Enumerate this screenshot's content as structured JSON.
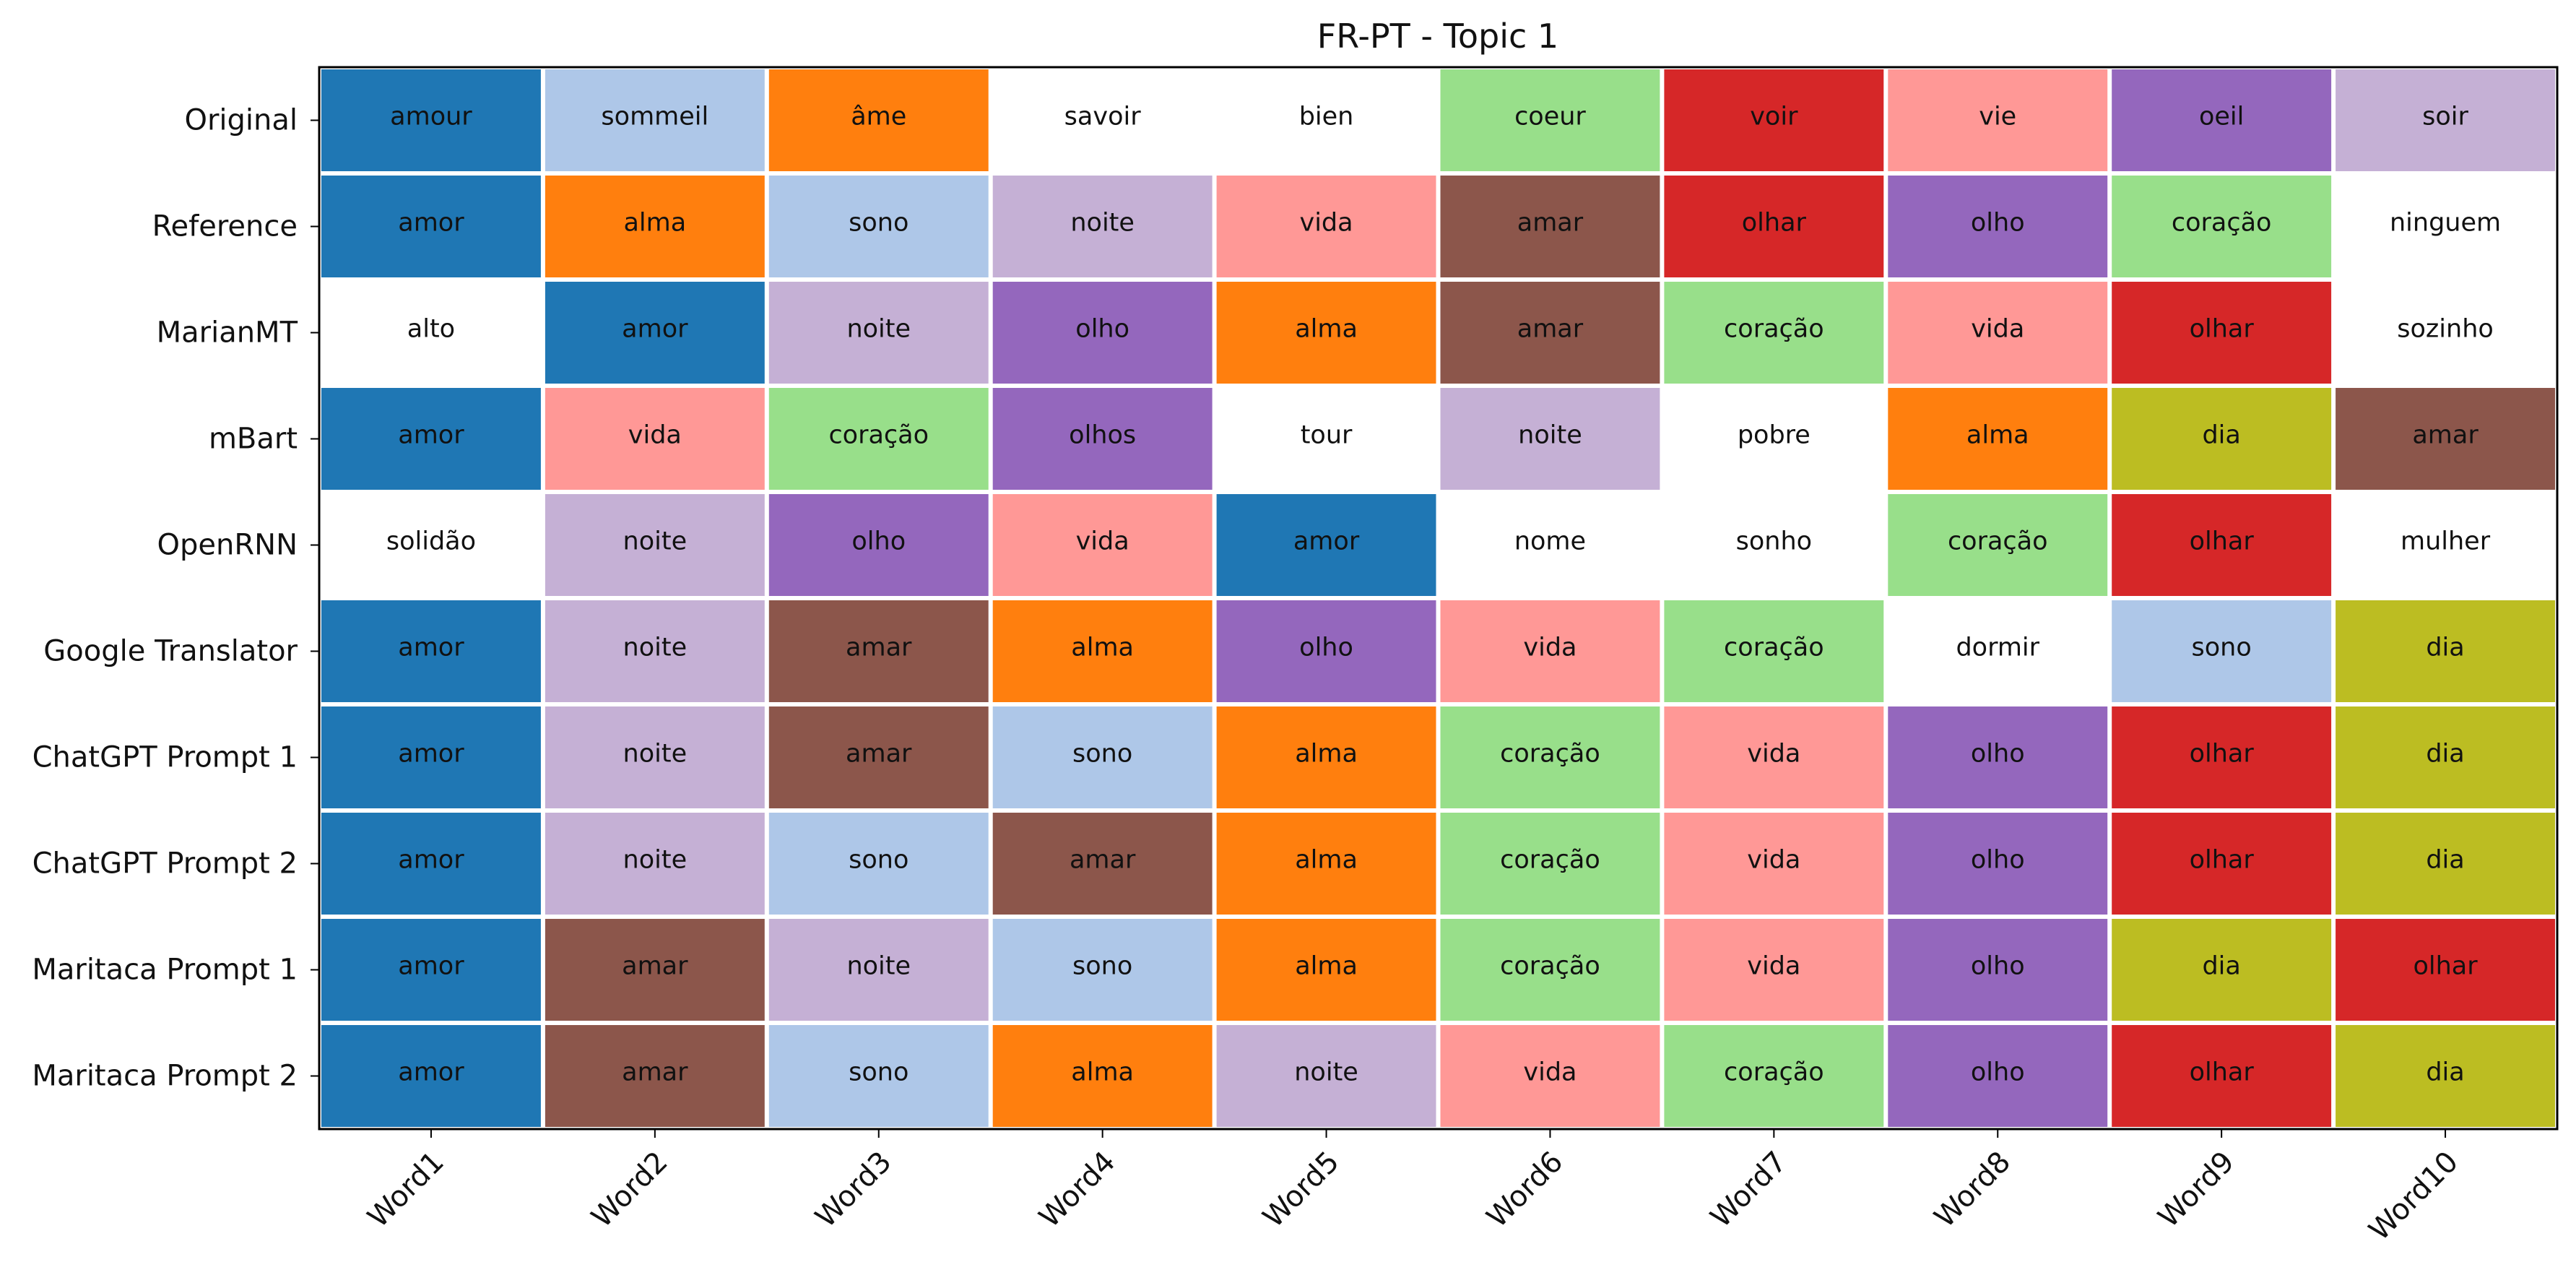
{
  "chart_data": {
    "type": "table",
    "title": "FR-PT - Topic 1",
    "columns": [
      "Word1",
      "Word2",
      "Word3",
      "Word4",
      "Word5",
      "Word6",
      "Word7",
      "Word8",
      "Word9",
      "Word10"
    ],
    "rows": [
      {
        "label": "Original",
        "words": [
          "amour",
          "sommeil",
          "âme",
          "savoir",
          "bien",
          "coeur",
          "voir",
          "vie",
          "oeil",
          "soir"
        ]
      },
      {
        "label": "Reference",
        "words": [
          "amor",
          "alma",
          "sono",
          "noite",
          "vida",
          "amar",
          "olhar",
          "olho",
          "coração",
          "ninguem"
        ]
      },
      {
        "label": "MarianMT",
        "words": [
          "alto",
          "amor",
          "noite",
          "olho",
          "alma",
          "amar",
          "coração",
          "vida",
          "olhar",
          "sozinho"
        ]
      },
      {
        "label": "mBart",
        "words": [
          "amor",
          "vida",
          "coração",
          "olhos",
          "tour",
          "noite",
          "pobre",
          "alma",
          "dia",
          "amar"
        ]
      },
      {
        "label": "OpenRNN",
        "words": [
          "solidão",
          "noite",
          "olho",
          "vida",
          "amor",
          "nome",
          "sonho",
          "coração",
          "olhar",
          "mulher"
        ]
      },
      {
        "label": "Google Translator",
        "words": [
          "amor",
          "noite",
          "amar",
          "alma",
          "olho",
          "vida",
          "coração",
          "dormir",
          "sono",
          "dia"
        ]
      },
      {
        "label": "ChatGPT Prompt 1",
        "words": [
          "amor",
          "noite",
          "amar",
          "sono",
          "alma",
          "coração",
          "vida",
          "olho",
          "olhar",
          "dia"
        ]
      },
      {
        "label": "ChatGPT Prompt 2",
        "words": [
          "amor",
          "noite",
          "sono",
          "amar",
          "alma",
          "coração",
          "vida",
          "olho",
          "olhar",
          "dia"
        ]
      },
      {
        "label": "Maritaca Prompt 1",
        "words": [
          "amor",
          "amar",
          "noite",
          "sono",
          "alma",
          "coração",
          "vida",
          "olho",
          "dia",
          "olhar"
        ]
      },
      {
        "label": "Maritaca Prompt 2",
        "words": [
          "amor",
          "amar",
          "sono",
          "alma",
          "noite",
          "vida",
          "coração",
          "olho",
          "olhar",
          "dia"
        ]
      }
    ],
    "cell_colors": [
      [
        "#1f77b4",
        "#aec7e8",
        "#ff7f0e",
        "#ffffff",
        "#ffffff",
        "#98df8a",
        "#d62728",
        "#ff9896",
        "#9467bd",
        "#c5b0d5"
      ],
      [
        "#1f77b4",
        "#ff7f0e",
        "#aec7e8",
        "#c5b0d5",
        "#ff9896",
        "#8c564b",
        "#d62728",
        "#9467bd",
        "#98df8a",
        "#ffffff"
      ],
      [
        "#ffffff",
        "#1f77b4",
        "#c5b0d5",
        "#9467bd",
        "#ff7f0e",
        "#8c564b",
        "#98df8a",
        "#ff9896",
        "#d62728",
        "#ffffff"
      ],
      [
        "#1f77b4",
        "#ff9896",
        "#98df8a",
        "#9467bd",
        "#ffffff",
        "#c5b0d5",
        "#ffffff",
        "#ff7f0e",
        "#bcbd22",
        "#8c564b"
      ],
      [
        "#ffffff",
        "#c5b0d5",
        "#9467bd",
        "#ff9896",
        "#1f77b4",
        "#ffffff",
        "#ffffff",
        "#98df8a",
        "#d62728",
        "#ffffff"
      ],
      [
        "#1f77b4",
        "#c5b0d5",
        "#8c564b",
        "#ff7f0e",
        "#9467bd",
        "#ff9896",
        "#98df8a",
        "#ffffff",
        "#aec7e8",
        "#bcbd22"
      ],
      [
        "#1f77b4",
        "#c5b0d5",
        "#8c564b",
        "#aec7e8",
        "#ff7f0e",
        "#98df8a",
        "#ff9896",
        "#9467bd",
        "#d62728",
        "#bcbd22"
      ],
      [
        "#1f77b4",
        "#c5b0d5",
        "#aec7e8",
        "#8c564b",
        "#ff7f0e",
        "#98df8a",
        "#ff9896",
        "#9467bd",
        "#d62728",
        "#bcbd22"
      ],
      [
        "#1f77b4",
        "#8c564b",
        "#c5b0d5",
        "#aec7e8",
        "#ff7f0e",
        "#98df8a",
        "#ff9896",
        "#9467bd",
        "#bcbd22",
        "#d62728"
      ],
      [
        "#1f77b4",
        "#8c564b",
        "#aec7e8",
        "#ff7f0e",
        "#c5b0d5",
        "#ff9896",
        "#98df8a",
        "#9467bd",
        "#d62728",
        "#bcbd22"
      ]
    ]
  }
}
